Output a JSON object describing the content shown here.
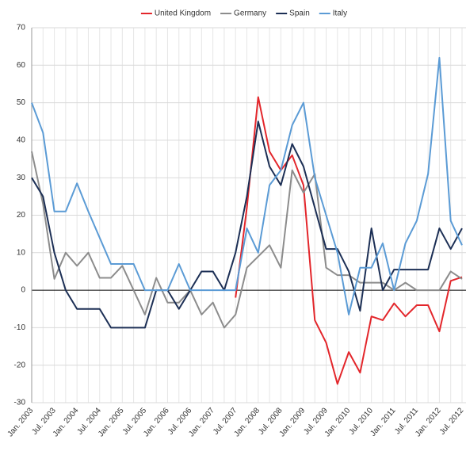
{
  "chart_data": {
    "type": "line",
    "categories": [
      "Jan. 2003",
      null,
      "Jul. 2003",
      null,
      "Jan. 2004",
      null,
      "Jul. 2004",
      null,
      "Jan. 2005",
      null,
      "Jul. 2005",
      null,
      "Jan. 2006",
      null,
      "Jul. 2006",
      null,
      "Jan. 2007",
      null,
      "Jul. 2007",
      null,
      "Jan. 2008",
      null,
      "Jul. 2008",
      null,
      "Jan. 2009",
      null,
      "Jul. 2009",
      null,
      "Jan. 2010",
      null,
      "Jul. 2010",
      null,
      "Jan. 2011",
      null,
      "Jul. 2011",
      null,
      "Jan. 2012",
      null,
      "Jul. 2012"
    ],
    "series": [
      {
        "name": "United Kingdom",
        "color": "#e3262b",
        "values": [
          null,
          null,
          null,
          null,
          null,
          null,
          null,
          null,
          null,
          null,
          null,
          null,
          null,
          null,
          null,
          null,
          null,
          null,
          -2,
          22,
          51.5,
          37,
          32,
          36,
          28,
          -8,
          -14,
          -25,
          -16.5,
          -22,
          -7,
          -8,
          -3.5,
          -7,
          -4,
          -4,
          -11,
          2.5,
          3.5
        ]
      },
      {
        "name": "Germany",
        "color": "#8c8c8c",
        "values": [
          37,
          23,
          3,
          10,
          6.5,
          10,
          3.3,
          3.3,
          6.5,
          0,
          -6.5,
          3.3,
          -3.3,
          -3.3,
          0,
          -6.5,
          -3.3,
          -10,
          -6.5,
          6,
          9,
          12,
          6,
          32,
          26,
          31,
          6,
          4,
          4,
          2,
          2,
          2,
          0,
          2,
          0,
          0,
          0,
          5,
          3
        ]
      },
      {
        "name": "Spain",
        "color": "#1c2f55",
        "values": [
          30,
          25,
          10,
          0,
          -5,
          -5,
          -5,
          -10,
          -10,
          -10,
          -10,
          0,
          0,
          -5,
          0,
          5,
          5,
          0,
          10,
          25,
          45,
          33,
          28,
          39,
          33,
          22,
          11,
          11,
          5,
          -5.5,
          16.5,
          0,
          5.5,
          5.5,
          5.5,
          5.5,
          16.5,
          11,
          16.5
        ]
      },
      {
        "name": "Italy",
        "color": "#5b9bd5",
        "values": [
          50,
          42,
          21,
          21,
          28.5,
          21,
          14,
          7,
          7,
          7,
          0,
          0,
          0,
          7,
          0,
          0,
          0,
          0,
          0,
          16.5,
          10,
          28,
          32,
          44,
          50,
          30,
          20,
          10,
          -6.5,
          6,
          6,
          12.5,
          0,
          12.5,
          18.5,
          31,
          62,
          18.5,
          12
        ]
      }
    ],
    "ylim": [
      -30,
      70
    ],
    "yticks": [
      -30,
      -20,
      -10,
      0,
      10,
      20,
      30,
      40,
      50,
      60,
      70
    ],
    "grid": true,
    "legend": "top"
  }
}
